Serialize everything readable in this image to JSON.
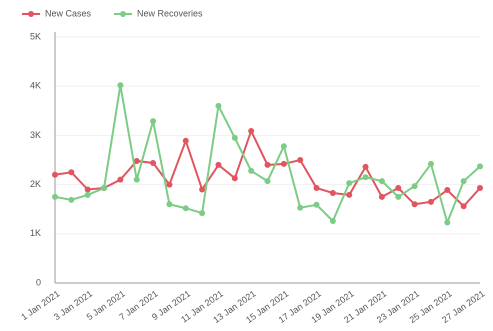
{
  "chart_data": {
    "type": "line",
    "categories": [
      "1 Jan 2021",
      null,
      "3 Jan 2021",
      null,
      "5 Jan 2021",
      null,
      "7 Jan 2021",
      null,
      "9 Jan 2021",
      null,
      "11 Jan 2021",
      null,
      "13 Jan 2021",
      null,
      "15 Jan 2021",
      null,
      "17 Jan 2021",
      null,
      "19 Jan 2021",
      null,
      "21 Jan 2021",
      null,
      "23 Jan 2021",
      null,
      "25 Jan 2021",
      null,
      "27 Jan 2021"
    ],
    "series": [
      {
        "name": "New Cases",
        "color": "#e0555f",
        "values": [
          2200,
          2250,
          1900,
          1930,
          2100,
          2480,
          2440,
          2000,
          2890,
          1900,
          2400,
          2130,
          3090,
          2400,
          2420,
          2500,
          1930,
          1830,
          1790,
          2360,
          1750,
          1930,
          1600,
          1650,
          1890,
          1560,
          1930
        ]
      },
      {
        "name": "New Recoveries",
        "color": "#7dcc86",
        "values": [
          1750,
          1690,
          1790,
          1930,
          4020,
          2100,
          3290,
          1600,
          1520,
          1420,
          3600,
          2950,
          2280,
          2070,
          2780,
          1530,
          1590,
          1260,
          2030,
          2150,
          2070,
          1750,
          1970,
          2420,
          1230,
          2070,
          2370
        ]
      }
    ],
    "ylim": [
      0,
      5000
    ],
    "yticks": [
      {
        "value": 0,
        "label": "0"
      },
      {
        "value": 1000,
        "label": "1K"
      },
      {
        "value": 2000,
        "label": "2K"
      },
      {
        "value": 3000,
        "label": "3K"
      },
      {
        "value": 4000,
        "label": "4K"
      },
      {
        "value": 5000,
        "label": "5K"
      }
    ],
    "grid": true,
    "legend": "top-left"
  }
}
